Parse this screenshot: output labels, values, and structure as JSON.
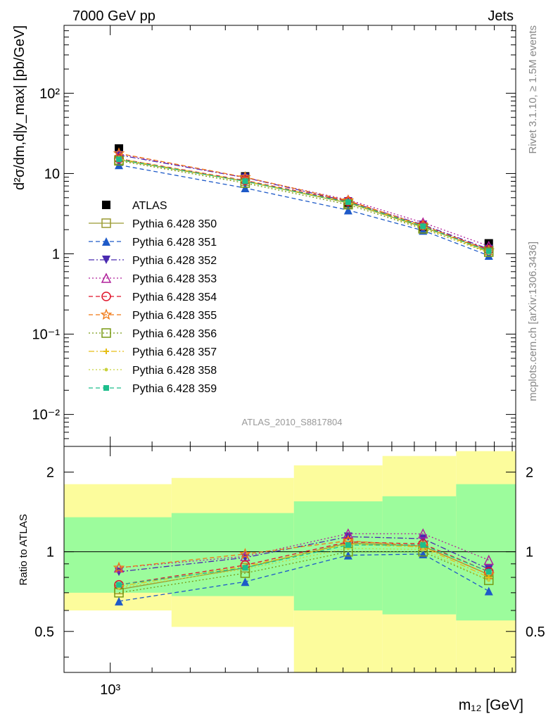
{
  "header": {
    "left": "7000 GeV pp",
    "right": "Jets"
  },
  "side": {
    "top": "Rivet 3.1.10, ≥ 1.5M events",
    "bottom": "mcplots.cern.ch [arXiv:1306.3436]"
  },
  "watermark": "ATLAS_2010_S8817804",
  "chart_data": [
    {
      "type": "scatter",
      "panel": "main",
      "ylabel": "d²σ/dm,d|y_max| [pb/GeV]",
      "ylog": true,
      "xlog": true,
      "xlim": [
        900,
        2520
      ],
      "ylim": [
        0.004,
        700
      ],
      "ytick_labels": [
        "10⁻²",
        "10⁻¹",
        "1",
        "10",
        "10²"
      ],
      "ytick_values": [
        0.01,
        0.1,
        1,
        10,
        100
      ],
      "x": [
        1020,
        1360,
        1720,
        2040,
        2370
      ],
      "legend": "left",
      "series": [
        {
          "name": "ATLAS",
          "color": "#000000",
          "marker": "square-filled",
          "dash": "none",
          "values": [
            20.5,
            9.2,
            4.2,
            2.1,
            1.35
          ]
        },
        {
          "name": "Pythia 6.428 350",
          "color": "#9a9a30",
          "marker": "square-open",
          "dash": "solid",
          "values": [
            14.8,
            8.0,
            4.3,
            2.15,
            1.1
          ]
        },
        {
          "name": "Pythia 6.428 351",
          "color": "#1e5ac8",
          "marker": "triangle-up-filled",
          "dash": "dashed",
          "values": [
            12.8,
            6.6,
            3.5,
            1.95,
            0.95
          ]
        },
        {
          "name": "Pythia 6.428 352",
          "color": "#4a2ab0",
          "marker": "triangle-down-filled",
          "dash": "dashdot",
          "values": [
            17.0,
            8.9,
            4.5,
            2.3,
            1.15
          ]
        },
        {
          "name": "Pythia 6.428 353",
          "color": "#b0209a",
          "marker": "triangle-up-open",
          "dash": "dotted",
          "values": [
            17.6,
            8.9,
            4.7,
            2.45,
            1.25
          ]
        },
        {
          "name": "Pythia 6.428 354",
          "color": "#e0142a",
          "marker": "circle-open",
          "dash": "dashed",
          "values": [
            15.3,
            8.2,
            4.5,
            2.25,
            1.12
          ]
        },
        {
          "name": "Pythia 6.428 355",
          "color": "#f07814",
          "marker": "star-open",
          "dash": "dashed",
          "values": [
            17.8,
            9.0,
            4.6,
            2.25,
            1.1
          ]
        },
        {
          "name": "Pythia 6.428 356",
          "color": "#789a14",
          "marker": "square-open",
          "dash": "dotted",
          "values": [
            14.4,
            7.6,
            4.1,
            2.05,
            1.05
          ]
        },
        {
          "name": "Pythia 6.428 357",
          "color": "#e6be14",
          "marker": "cross-small",
          "dash": "dashdot",
          "values": [
            15.2,
            8.1,
            4.4,
            2.2,
            1.05
          ]
        },
        {
          "name": "Pythia 6.428 358",
          "color": "#c8d23c",
          "marker": "dot-small",
          "dash": "dotted",
          "values": [
            14.8,
            7.9,
            4.3,
            2.1,
            1.02
          ]
        },
        {
          "name": "Pythia 6.428 359",
          "color": "#1ebe8c",
          "marker": "square-filled-small",
          "dash": "dashed",
          "values": [
            15.0,
            8.0,
            4.4,
            2.2,
            1.08
          ]
        }
      ]
    },
    {
      "type": "scatter",
      "panel": "ratio",
      "ylabel": "Ratio to ATLAS",
      "xlabel": "m₁₂ [GeV]",
      "xlim": [
        900,
        2520
      ],
      "ylim": [
        0.35,
        2.5
      ],
      "ylog": true,
      "ytick_labels": [
        "0.5",
        "1",
        "2"
      ],
      "ytick_values": [
        0.5,
        1,
        2
      ],
      "xtick_labels": [
        "10³"
      ],
      "xtick_values": [
        1000
      ],
      "x": [
        1020,
        1360,
        1720,
        2040,
        2370
      ],
      "bands": {
        "edges": [
          900,
          1150,
          1520,
          1860,
          2200,
          2520
        ],
        "inner_lo": [
          0.7,
          0.68,
          0.6,
          0.58,
          0.55
        ],
        "inner_hi": [
          1.35,
          1.4,
          1.55,
          1.62,
          1.8
        ],
        "outer_lo": [
          0.6,
          0.52,
          0.35,
          0.35,
          0.35
        ],
        "outer_hi": [
          1.8,
          1.9,
          2.12,
          2.3,
          2.4
        ],
        "inner_color": "#9cfc9c",
        "outer_color": "#fcfc9c"
      },
      "series": [
        {
          "name": "Pythia 6.428 350",
          "color": "#9a9a30",
          "marker": "square-open",
          "dash": "solid",
          "values": [
            0.72,
            0.87,
            1.08,
            1.05,
            0.82
          ]
        },
        {
          "name": "Pythia 6.428 351",
          "color": "#1e5ac8",
          "marker": "triangle-up-filled",
          "dash": "dashed",
          "values": [
            0.65,
            0.77,
            0.97,
            0.98,
            0.71
          ]
        },
        {
          "name": "Pythia 6.428 352",
          "color": "#4a2ab0",
          "marker": "triangle-down-filled",
          "dash": "dashdot",
          "values": [
            0.84,
            0.95,
            1.14,
            1.12,
            0.86
          ]
        },
        {
          "name": "Pythia 6.428 353",
          "color": "#b0209a",
          "marker": "triangle-up-open",
          "dash": "dotted",
          "values": [
            0.87,
            0.96,
            1.17,
            1.17,
            0.93
          ]
        },
        {
          "name": "Pythia 6.428 354",
          "color": "#e0142a",
          "marker": "circle-open",
          "dash": "dashed",
          "values": [
            0.75,
            0.89,
            1.09,
            1.07,
            0.84
          ]
        },
        {
          "name": "Pythia 6.428 355",
          "color": "#f07814",
          "marker": "star-open",
          "dash": "dashed",
          "values": [
            0.87,
            0.98,
            1.1,
            1.05,
            0.82
          ]
        },
        {
          "name": "Pythia 6.428 356",
          "color": "#789a14",
          "marker": "square-open",
          "dash": "dotted",
          "values": [
            0.7,
            0.83,
            1.0,
            1.0,
            0.78
          ]
        },
        {
          "name": "Pythia 6.428 357",
          "color": "#e6be14",
          "marker": "cross-small",
          "dash": "dashdot",
          "values": [
            0.74,
            0.88,
            1.07,
            1.04,
            0.8
          ]
        },
        {
          "name": "Pythia 6.428 358",
          "color": "#c8d23c",
          "marker": "dot-small",
          "dash": "dotted",
          "values": [
            0.73,
            0.86,
            1.03,
            1.02,
            0.78
          ]
        },
        {
          "name": "Pythia 6.428 359",
          "color": "#1ebe8c",
          "marker": "square-filled-small",
          "dash": "dashed",
          "values": [
            0.75,
            0.87,
            1.06,
            1.06,
            0.84
          ]
        }
      ]
    }
  ]
}
